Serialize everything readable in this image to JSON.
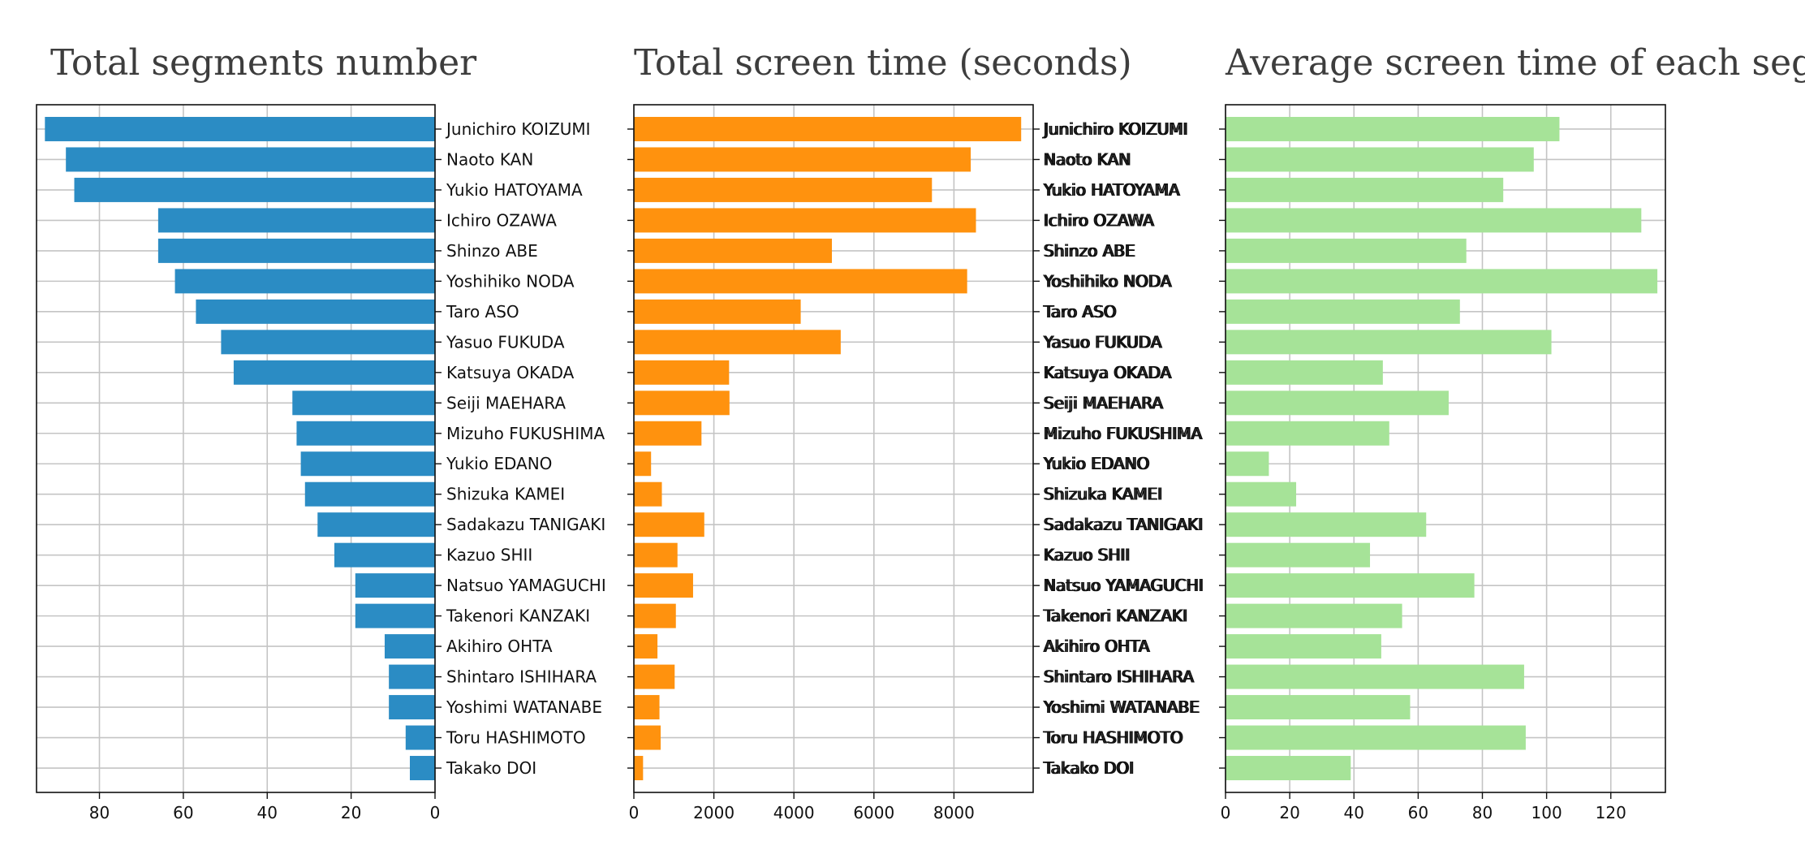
{
  "chart_data": [
    {
      "type": "bar",
      "orientation": "horizontal",
      "title": "Total segments number",
      "xlabel": "",
      "ylabel": "",
      "color": "#2b8cc4",
      "xlim": [
        0,
        95
      ],
      "x_inverted": true,
      "ticks": [
        80,
        60,
        40,
        20,
        0
      ],
      "grid": true,
      "categories": [
        "Junichiro KOIZUMI",
        "Naoto KAN",
        "Yukio HATOYAMA",
        "Ichiro OZAWA",
        "Shinzo ABE",
        "Yoshihiko NODA",
        "Taro ASO",
        "Yasuo FUKUDA",
        "Katsuya OKADA",
        "Seiji MAEHARA",
        "Mizuho FUKUSHIMA",
        "Yukio EDANO",
        "Shizuka KAMEI",
        "Sadakazu TANIGAKI",
        "Kazuo SHII",
        "Natsuo YAMAGUCHI",
        "Takenori KANZAKI",
        "Akihiro OHTA",
        "Shintaro ISHIHARA",
        "Yoshimi WATANABE",
        "Toru HASHIMOTO",
        "Takako DOI"
      ],
      "values": [
        93,
        88,
        86,
        66,
        66,
        62,
        57,
        51,
        48,
        34,
        33,
        32,
        31,
        28,
        24,
        19,
        19,
        12,
        11,
        11,
        7,
        6
      ]
    },
    {
      "type": "bar",
      "orientation": "horizontal",
      "title": "Total screen time (seconds)",
      "xlabel": "",
      "ylabel": "",
      "color": "#ff920e",
      "xlim": [
        0,
        9980
      ],
      "ticks": [
        0,
        2000,
        4000,
        6000,
        8000
      ],
      "grid": true,
      "categories": [
        "Junichiro KOIZUMI",
        "Naoto KAN",
        "Yukio HATOYAMA",
        "Ichiro OZAWA",
        "Shinzo ABE",
        "Yoshihiko NODA",
        "Taro ASO",
        "Yasuo FUKUDA",
        "Katsuya OKADA",
        "Seiji MAEHARA",
        "Mizuho FUKUSHIMA",
        "Yukio EDANO",
        "Shizuka KAMEI",
        "Sadakazu TANIGAKI",
        "Kazuo SHII",
        "Natsuo YAMAGUCHI",
        "Takenori KANZAKI",
        "Akihiro OHTA",
        "Shintaro ISHIHARA",
        "Yoshimi WATANABE",
        "Toru HASHIMOTO",
        "Takako DOI"
      ],
      "values": [
        9680,
        8420,
        7450,
        8550,
        4950,
        8330,
        4170,
        5170,
        2380,
        2390,
        1690,
        430,
        700,
        1760,
        1090,
        1480,
        1050,
        590,
        1020,
        640,
        670,
        230
      ]
    },
    {
      "type": "bar",
      "orientation": "horizontal",
      "title": "Average screen time of each segment",
      "xlabel": "",
      "ylabel": "",
      "color": "#a6e398",
      "xlim": [
        0,
        137
      ],
      "ticks": [
        0,
        20,
        40,
        60,
        80,
        100,
        120
      ],
      "grid": true,
      "categories": [
        "Junichiro KOIZUMI",
        "Naoto KAN",
        "Yukio HATOYAMA",
        "Ichiro OZAWA",
        "Shinzo ABE",
        "Yoshihiko NODA",
        "Taro ASO",
        "Yasuo FUKUDA",
        "Katsuya OKADA",
        "Seiji MAEHARA",
        "Mizuho FUKUSHIMA",
        "Yukio EDANO",
        "Shizuka KAMEI",
        "Sadakazu TANIGAKI",
        "Kazuo SHII",
        "Natsuo YAMAGUCHI",
        "Takenori KANZAKI",
        "Akihiro OHTA",
        "Shintaro ISHIHARA",
        "Yoshimi WATANABE",
        "Toru HASHIMOTO",
        "Takako DOI"
      ],
      "values": [
        104,
        96,
        86.5,
        129.5,
        75,
        134.5,
        73,
        101.5,
        49,
        69.5,
        51,
        13.5,
        22,
        62.5,
        45,
        77.5,
        55,
        48.5,
        93,
        57.5,
        93.5,
        39
      ]
    }
  ]
}
